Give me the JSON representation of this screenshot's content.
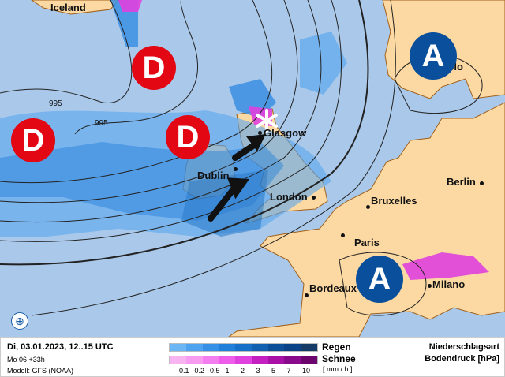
{
  "map": {
    "cities": [
      {
        "name": "Iceland"
      },
      {
        "name": "Glasgow"
      },
      {
        "name": "Dublin"
      },
      {
        "name": "London"
      },
      {
        "name": "Bruxelles"
      },
      {
        "name": "Berlin"
      },
      {
        "name": "Paris"
      },
      {
        "name": "Bordeaux"
      },
      {
        "name": "Milano"
      },
      {
        "name": "Oslo"
      }
    ],
    "isobar_labels": [
      "995",
      "995"
    ],
    "low_label": "D",
    "high_label": "A",
    "colors": {
      "ocean": "#aac9ea",
      "land": "#fcd9a3",
      "low": "#e30613",
      "high": "#0a4f9c"
    }
  },
  "legend": {
    "date": "Di, 03.01.2023, 12..15 UTC",
    "run": "Mo 06 +33h",
    "model": "Modell: GFS (NOAA)",
    "rain_label": "Regen",
    "snow_label": "Schnee",
    "unit": "[ mm / h ]",
    "title1": "Niederschlagsart",
    "title2": "Bodendruck [hPa]",
    "ticks": [
      "0.1",
      "0.2",
      "0.5",
      "1",
      "2",
      "3",
      "5",
      "7",
      "10"
    ],
    "rain_colors": [
      "#6cb6f5",
      "#4ea3f0",
      "#3590e6",
      "#1f7fd9",
      "#1670c8",
      "#1260b0",
      "#0b4f98",
      "#0a4288",
      "#143a66"
    ],
    "snow_colors": [
      "#f8b4f0",
      "#f79cf0",
      "#f47ef0",
      "#ee5ce9",
      "#e040de",
      "#c41fc0",
      "#a810a8",
      "#8a0a8c",
      "#6c066e"
    ]
  }
}
